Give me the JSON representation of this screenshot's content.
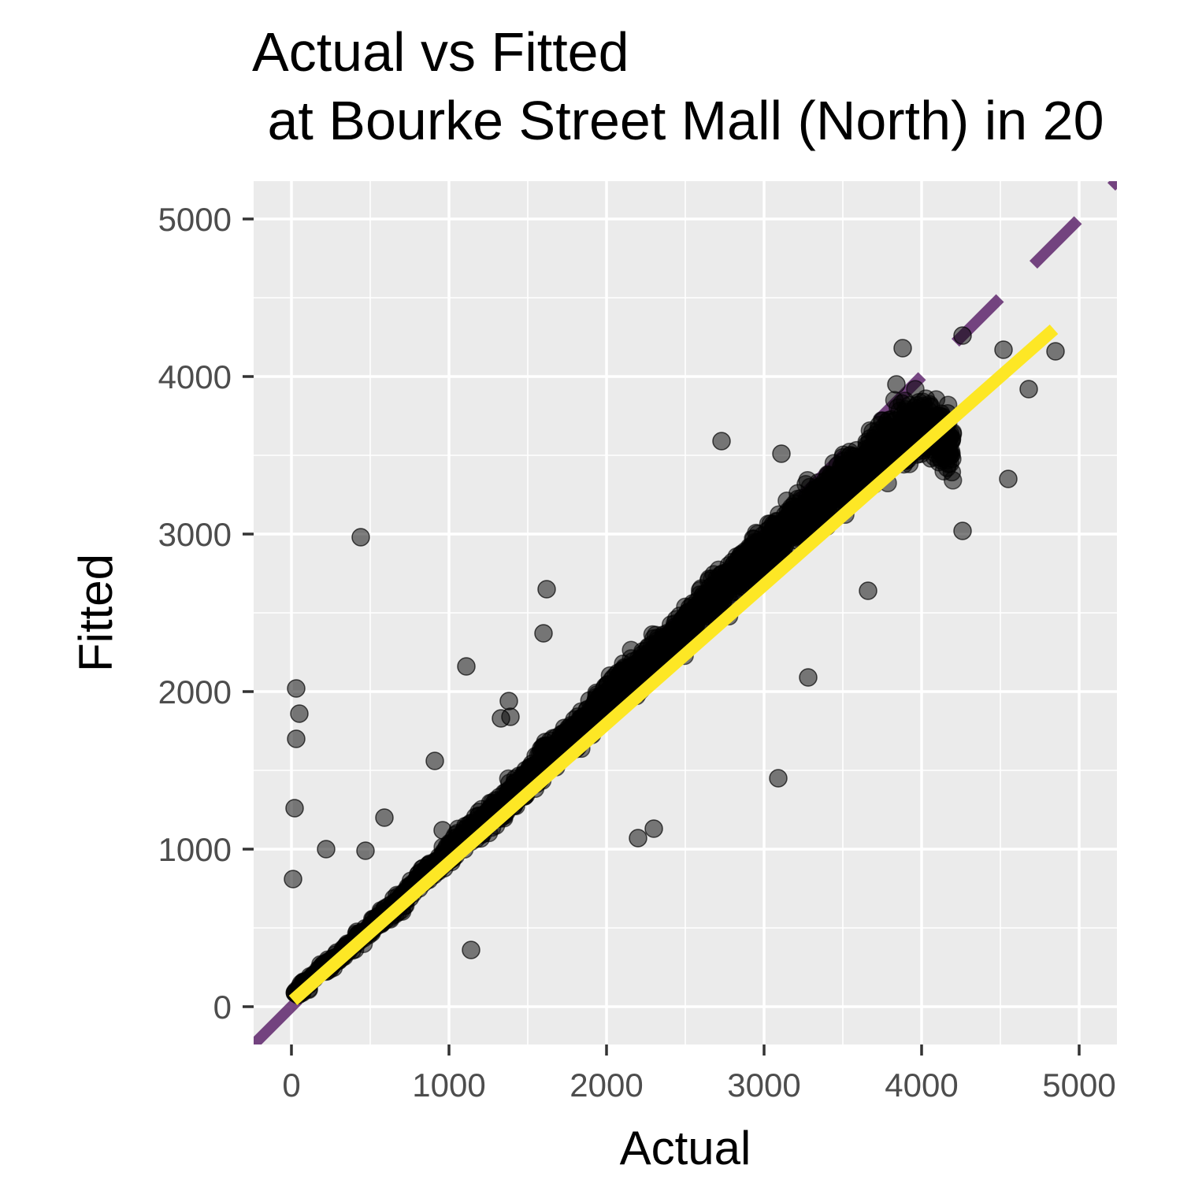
{
  "chart_data": {
    "type": "scatter",
    "title": "Actual vs Fitted",
    "subtitle": " at Bourke Street Mall (North) in 20",
    "xlabel": "Actual",
    "ylabel": "Fitted",
    "xlim": [
      -240,
      5240
    ],
    "ylim": [
      -240,
      5240
    ],
    "x_ticks": [
      0,
      1000,
      2000,
      3000,
      4000,
      5000
    ],
    "y_ticks": [
      0,
      1000,
      2000,
      3000,
      4000,
      5000
    ],
    "x_tick_labels": [
      "0",
      "1000",
      "2000",
      "3000",
      "4000",
      "5000"
    ],
    "y_tick_labels": [
      "0",
      "1000",
      "2000",
      "3000",
      "4000",
      "5000"
    ],
    "grid": true,
    "legend": "none",
    "colors": {
      "panel_background": "#EBEBEB",
      "grid": "#FFFFFF",
      "points": "#000000",
      "reference_line": "#440154",
      "fit_line": "#FDE725"
    },
    "reference_line": {
      "style": "dashed",
      "slope": 1,
      "intercept": 0
    },
    "fit_line": {
      "style": "solid",
      "x": [
        10,
        4840
      ],
      "y": [
        40,
        4300
      ]
    },
    "outliers": {
      "x": [
        440,
        30,
        50,
        30,
        20,
        10,
        220,
        470,
        1110,
        3090,
        1620,
        2300,
        2200,
        1390,
        1330,
        1380,
        1600,
        2730,
        3280,
        3660,
        3110,
        4260,
        4520,
        4850,
        3880,
        4680,
        4550,
        960,
        3840,
        4260,
        910,
        590,
        1140
      ],
      "y": [
        2980,
        2020,
        1860,
        1700,
        1260,
        810,
        1000,
        990,
        2160,
        1450,
        2650,
        1130,
        1070,
        1840,
        1830,
        1940,
        2370,
        3590,
        2090,
        2640,
        3510,
        4260,
        4170,
        4160,
        4180,
        3920,
        3350,
        1120,
        3950,
        3020,
        1560,
        1200,
        360
      ]
    },
    "cloud_sample": {
      "x": [
        30,
        100,
        200,
        300,
        400,
        500,
        600,
        700,
        800,
        900,
        1000,
        1100,
        1200,
        1300,
        1400,
        1500,
        1600,
        1700,
        1800,
        1900,
        2000,
        2100,
        2200,
        2300,
        2400,
        2500,
        2600,
        2700,
        2800,
        2900,
        3000,
        3100,
        3200,
        3300,
        3400,
        3500,
        3600,
        3700,
        3800,
        3900,
        4000,
        4100,
        4200
      ],
      "y": [
        90,
        150,
        240,
        320,
        410,
        500,
        590,
        680,
        800,
        880,
        980,
        1080,
        1160,
        1250,
        1350,
        1440,
        1570,
        1650,
        1730,
        1830,
        1960,
        2060,
        2130,
        2230,
        2300,
        2430,
        2520,
        2600,
        2730,
        2800,
        2880,
        2990,
        3070,
        3160,
        3250,
        3330,
        3410,
        3510,
        3600,
        3640,
        3700,
        3640,
        3560
      ]
    }
  }
}
